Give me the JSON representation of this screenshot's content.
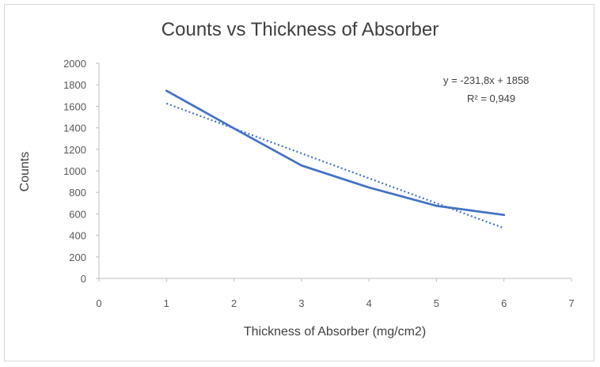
{
  "chart_data": {
    "type": "scatter",
    "title": "Counts vs Thickness of Absorber",
    "xlabel": "Thickness of Absorber (mg/cm2)",
    "ylabel": "Counts",
    "xlim": [
      0,
      7
    ],
    "ylim": [
      0,
      2000
    ],
    "x_ticks": [
      0,
      1,
      2,
      3,
      4,
      5,
      6,
      7
    ],
    "y_ticks": [
      0,
      200,
      400,
      600,
      800,
      1000,
      1200,
      1400,
      1600,
      1800,
      2000
    ],
    "grid": false,
    "legend": "none",
    "series": [
      {
        "type": "line",
        "color": "#4472c4",
        "x": [
          1,
          2,
          3,
          4,
          5,
          6
        ],
        "y": [
          1745,
          1395,
          1050,
          845,
          675,
          590
        ]
      }
    ],
    "trendline": {
      "type": "linear",
      "style": "dotted",
      "color": "#4472c4",
      "slope": -231.8,
      "intercept": 1858,
      "x_range": [
        1,
        6
      ],
      "equation_label": "y = -231,8x + 1858",
      "r2_label": "R² = 0,949"
    }
  }
}
